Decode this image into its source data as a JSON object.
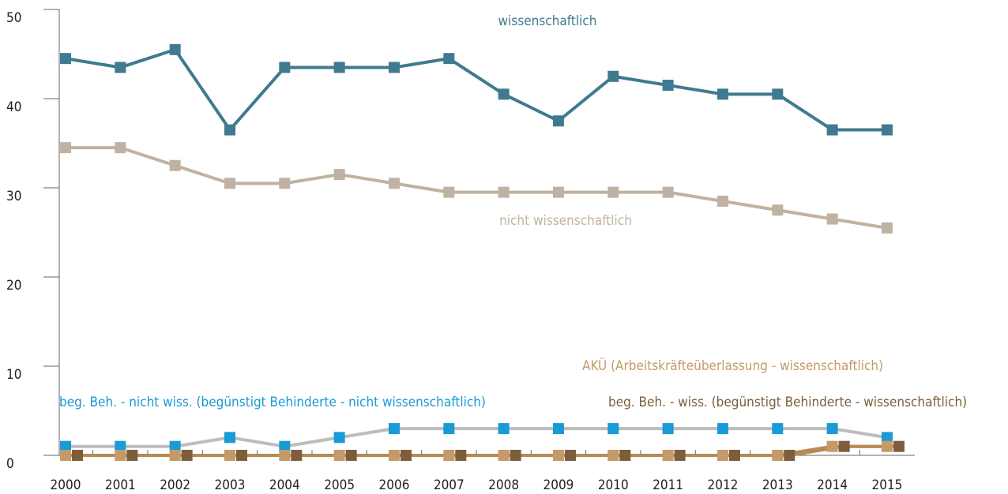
{
  "chart_data": {
    "type": "line",
    "categories": [
      "2000",
      "2001",
      "2002",
      "2003",
      "2004",
      "2005",
      "2006",
      "2007",
      "2008",
      "2009",
      "2010",
      "2011",
      "2012",
      "2013",
      "2014",
      "2015"
    ],
    "ylim": [
      0,
      50
    ],
    "yticks": [
      0,
      10,
      20,
      30,
      40,
      50
    ],
    "series": [
      {
        "name": "wissenschaftlich",
        "color": "#3f7a91",
        "line_color": "#3f7a91",
        "values": [
          44.5,
          43.5,
          45.5,
          36.5,
          43.5,
          43.5,
          43.5,
          44.5,
          40.5,
          37.5,
          42.5,
          41.5,
          40.5,
          40.5,
          36.5,
          36.5
        ]
      },
      {
        "name": "nicht wissenschaftlich",
        "color": "#bfb2a2",
        "line_color": "#bfb2a2",
        "values": [
          34.5,
          34.5,
          32.5,
          30.5,
          30.5,
          31.5,
          30.5,
          29.5,
          29.5,
          29.5,
          29.5,
          29.5,
          28.5,
          27.5,
          26.5,
          25.5
        ]
      },
      {
        "name": "beg. Beh. - nicht wiss. (begünstigt Behinderte - nicht wissenschaftlich)",
        "color": "#1a9ad6",
        "line_color": "#bdbdbd",
        "values": [
          1,
          1,
          1,
          2,
          1,
          2,
          3,
          3,
          3,
          3,
          3,
          3,
          3,
          3,
          3,
          2
        ]
      },
      {
        "name": "AKÜ (Arbeitskräfteüberlassung - wissenschaftlich)",
        "color": "#c49a68",
        "line_color": "#b88a55",
        "values": [
          0,
          0,
          0,
          0,
          0,
          0,
          0,
          0,
          0,
          0,
          0,
          0,
          0,
          0,
          1,
          1
        ]
      },
      {
        "name": "beg. Beh. - wiss. (begünstigt Behinderte - wissenschaftlich)",
        "color": "#7d5e3c",
        "line_color": "#b88a55",
        "values": [
          0,
          0,
          0,
          0,
          0,
          0,
          0,
          0,
          0,
          0,
          0,
          0,
          0,
          0,
          1,
          1
        ]
      }
    ]
  }
}
